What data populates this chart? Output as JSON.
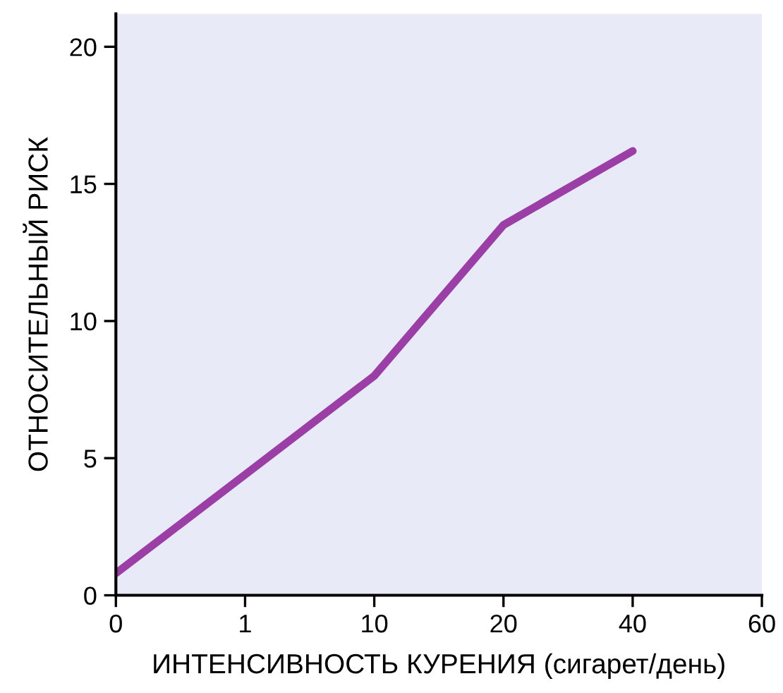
{
  "chart_data": {
    "type": "line",
    "xlabel": "ИНТЕНСИВНОСТЬ КУРЕНИЯ (сигарет/день)",
    "ylabel": "ОТНОСИТЕЛЬНЫЙ РИСК",
    "categories": [
      "0",
      "1",
      "10",
      "20",
      "40",
      "60"
    ],
    "series": [
      {
        "color": "#9b3fa6",
        "values": [
          0.8,
          4.4,
          8.0,
          13.5,
          16.2,
          null
        ]
      }
    ],
    "ylim": [
      0,
      21.2
    ],
    "yticks": [
      0,
      5,
      10,
      15,
      20
    ],
    "grid": false,
    "legend": false,
    "marker": "none",
    "line_style": "solid"
  }
}
